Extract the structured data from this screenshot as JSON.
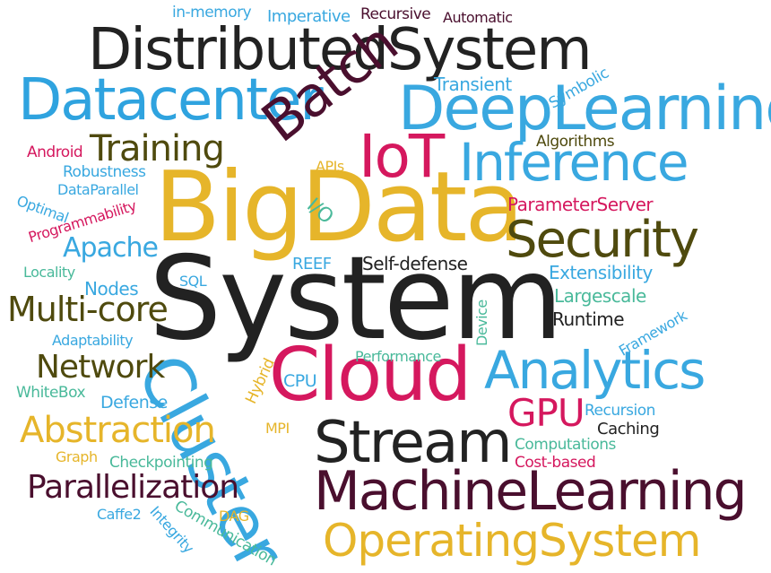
{
  "palette": {
    "dark": "#222222",
    "maroon": "#4a0f2e",
    "olive": "#4f4a0e",
    "blue": "#2fa3df",
    "crimson": "#d5185e",
    "gold": "#e6b52a",
    "teal": "#49b99a",
    "sky": "#39a8e0"
  },
  "words": [
    {
      "text": "System",
      "color": "dark"
    },
    {
      "text": "BigData",
      "color": "gold"
    },
    {
      "text": "DistributedSystem",
      "color": "dark"
    },
    {
      "text": "DeepLearning",
      "color": "sky"
    },
    {
      "text": "Datacenter",
      "color": "blue"
    },
    {
      "text": "Batch",
      "color": "maroon"
    },
    {
      "text": "IoT",
      "color": "crimson"
    },
    {
      "text": "Inference",
      "color": "sky"
    },
    {
      "text": "Training",
      "color": "olive"
    },
    {
      "text": "Security",
      "color": "olive"
    },
    {
      "text": "Cloud",
      "color": "crimson"
    },
    {
      "text": "Analytics",
      "color": "sky"
    },
    {
      "text": "Cluster",
      "color": "sky"
    },
    {
      "text": "Stream",
      "color": "dark"
    },
    {
      "text": "MachineLearning",
      "color": "maroon"
    },
    {
      "text": "OperatingSystem",
      "color": "gold"
    },
    {
      "text": "GPU",
      "color": "crimson"
    },
    {
      "text": "Abstraction",
      "color": "gold"
    },
    {
      "text": "Parallelization",
      "color": "maroon"
    },
    {
      "text": "Network",
      "color": "olive"
    },
    {
      "text": "Multi-core",
      "color": "olive"
    },
    {
      "text": "Apache",
      "color": "sky"
    },
    {
      "text": "in-memory",
      "color": "sky"
    },
    {
      "text": "Imperative",
      "color": "sky"
    },
    {
      "text": "Recursive",
      "color": "maroon"
    },
    {
      "text": "Automatic",
      "color": "maroon"
    },
    {
      "text": "Transient",
      "color": "sky"
    },
    {
      "text": "Symbolic",
      "color": "sky"
    },
    {
      "text": "Algorithms",
      "color": "olive"
    },
    {
      "text": "Android",
      "color": "crimson"
    },
    {
      "text": "Robustness",
      "color": "sky"
    },
    {
      "text": "DataParallel",
      "color": "sky"
    },
    {
      "text": "Optimal",
      "color": "sky"
    },
    {
      "text": "Programmability",
      "color": "crimson"
    },
    {
      "text": "APIs",
      "color": "gold"
    },
    {
      "text": "I/O",
      "color": "teal"
    },
    {
      "text": "ParameterServer",
      "color": "crimson"
    },
    {
      "text": "Locality",
      "color": "teal"
    },
    {
      "text": "REEF",
      "color": "sky"
    },
    {
      "text": "Self-defense",
      "color": "dark"
    },
    {
      "text": "SQL",
      "color": "sky"
    },
    {
      "text": "Nodes",
      "color": "sky"
    },
    {
      "text": "Extensibility",
      "color": "sky"
    },
    {
      "text": "Largescale",
      "color": "teal"
    },
    {
      "text": "Device",
      "color": "teal"
    },
    {
      "text": "Runtime",
      "color": "dark"
    },
    {
      "text": "Framework",
      "color": "sky"
    },
    {
      "text": "Adaptability",
      "color": "sky"
    },
    {
      "text": "Hybrid",
      "color": "gold"
    },
    {
      "text": "Performance",
      "color": "teal"
    },
    {
      "text": "CPU",
      "color": "sky"
    },
    {
      "text": "WhiteBox",
      "color": "teal"
    },
    {
      "text": "Defense",
      "color": "sky"
    },
    {
      "text": "Recursion",
      "color": "sky"
    },
    {
      "text": "Caching",
      "color": "dark"
    },
    {
      "text": "MPI",
      "color": "gold"
    },
    {
      "text": "Computations",
      "color": "teal"
    },
    {
      "text": "Cost-based",
      "color": "crimson"
    },
    {
      "text": "Graph",
      "color": "gold"
    },
    {
      "text": "Checkpointing",
      "color": "teal"
    },
    {
      "text": "DAG",
      "color": "gold"
    },
    {
      "text": "Caffe2",
      "color": "sky"
    },
    {
      "text": "Integrity",
      "color": "sky"
    },
    {
      "text": "Communication",
      "color": "teal"
    }
  ]
}
